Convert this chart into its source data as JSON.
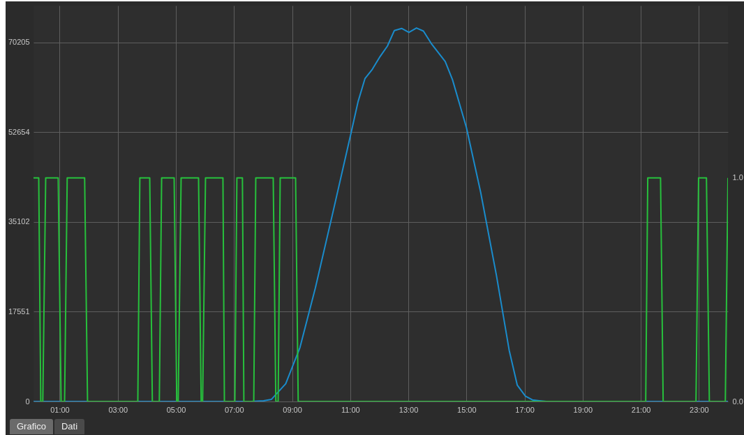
{
  "chart_data": {
    "type": "line",
    "xlim": [
      0.1,
      24
    ],
    "ylim": [
      0,
      77400
    ],
    "y2lim": [
      0,
      1.77
    ],
    "xticks": [
      {
        "value": 1,
        "label": "01:00"
      },
      {
        "value": 3,
        "label": "03:00"
      },
      {
        "value": 5,
        "label": "05:00"
      },
      {
        "value": 7,
        "label": "07:00"
      },
      {
        "value": 9,
        "label": "09:00"
      },
      {
        "value": 11,
        "label": "11:00"
      },
      {
        "value": 13,
        "label": "13:00"
      },
      {
        "value": 15,
        "label": "15:00"
      },
      {
        "value": 17,
        "label": "17:00"
      },
      {
        "value": 19,
        "label": "19:00"
      },
      {
        "value": 21,
        "label": "21:00"
      },
      {
        "value": 23,
        "label": "23:00"
      }
    ],
    "yticks": [
      0,
      17551,
      35102,
      52654,
      70205
    ],
    "y2ticks": [
      {
        "value": 0,
        "label": "0.0"
      },
      {
        "value": 1,
        "label": "1.0"
      }
    ],
    "grid": true,
    "series": [
      {
        "color": "#1a8ccc",
        "x": [
          0.1,
          7.58,
          8.02,
          8.29,
          8.78,
          9.27,
          9.8,
          10.42,
          11.03,
          11.27,
          11.51,
          11.76,
          12.03,
          12.28,
          12.52,
          12.77,
          13.02,
          13.28,
          13.52,
          13.79,
          14.27,
          14.52,
          15.0,
          15.49,
          16.03,
          16.47,
          16.75,
          17.03,
          17.27,
          17.51,
          17.75,
          24
        ],
        "values": [
          0,
          0,
          150,
          420,
          3470,
          10540,
          22180,
          37350,
          52530,
          58610,
          63160,
          64930,
          67460,
          69480,
          72530,
          72940,
          72160,
          73020,
          72420,
          69990,
          66450,
          62910,
          53540,
          40890,
          24720,
          10040,
          3180,
          1050,
          310,
          140,
          0,
          0
        ]
      },
      {
        "axis": "y2",
        "color": "#27c03c",
        "x": [
          0.1,
          0.28,
          0.35,
          0.42,
          0.52,
          0.95,
          1.05,
          1.17,
          1.26,
          1.86,
          1.96,
          3.69,
          3.76,
          4.1,
          4.19,
          4.43,
          4.51,
          4.94,
          5.03,
          5.08,
          5.18,
          5.78,
          5.87,
          5.92,
          6.02,
          6.62,
          6.67,
          7.03,
          7.1,
          7.29,
          7.34,
          7.68,
          7.75,
          8.35,
          8.44,
          8.52,
          8.59,
          9.12,
          9.21,
          21.17,
          21.24,
          21.68,
          21.77,
          22.9,
          22.99,
          23.26,
          23.36,
          23.91,
          24
        ],
        "values": [
          1,
          1,
          0,
          0,
          1,
          1,
          0,
          0,
          1,
          1,
          0,
          0,
          1,
          1,
          0,
          0,
          1,
          1,
          0,
          0,
          1,
          1,
          0,
          0,
          1,
          1,
          0,
          0,
          1,
          1,
          0,
          0,
          1,
          1,
          0,
          0,
          1,
          1,
          0,
          0,
          1,
          1,
          0,
          0,
          1,
          1,
          0,
          0,
          1
        ]
      }
    ],
    "annotations": [
      "Grafico",
      "Dati"
    ]
  }
}
